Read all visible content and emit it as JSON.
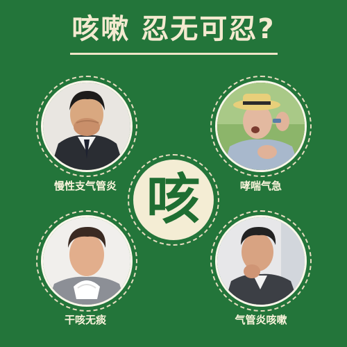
{
  "title": "咳嗽  忍无可忍?",
  "center": {
    "character": "咳"
  },
  "items": [
    {
      "caption": "慢性支气管炎"
    },
    {
      "caption": "哮喘气急"
    },
    {
      "caption": "干咳无痰"
    },
    {
      "caption": "气管炎咳嗽"
    }
  ],
  "colors": {
    "background": "#23753a",
    "cream": "#f4edd4",
    "accent_text": "#1f6e32"
  }
}
